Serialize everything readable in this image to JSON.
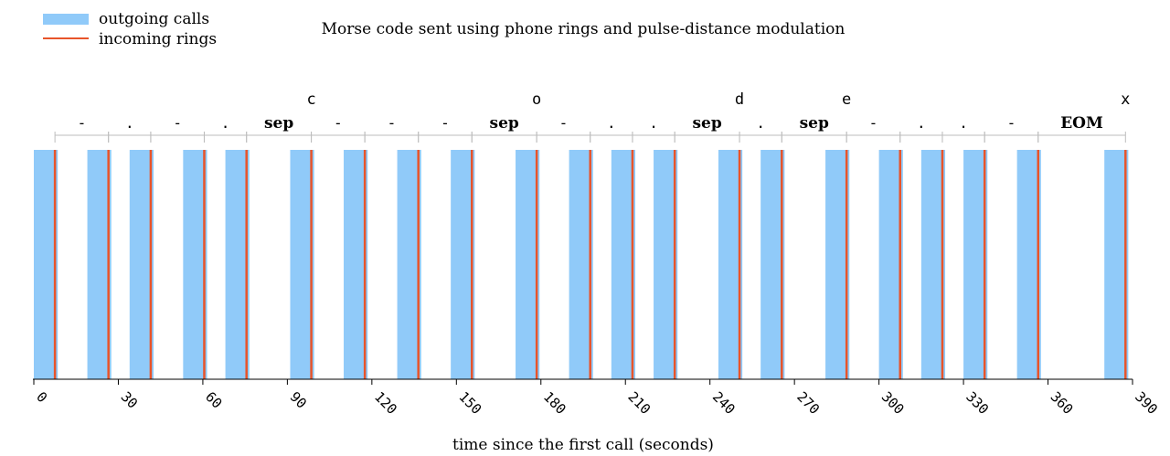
{
  "chart_data": {
    "type": "bar",
    "title": "Morse code sent using phone rings and pulse-distance modulation",
    "xlabel": "time since the first call (seconds)",
    "ylabel": "",
    "xlim": [
      0,
      390
    ],
    "xticks": [
      "0",
      "30",
      "60",
      "90",
      "120",
      "150",
      "180",
      "210",
      "240",
      "270",
      "300",
      "330",
      "360",
      "390"
    ],
    "grid": false,
    "legend_position": "top-left",
    "colors": {
      "outgoing": "#90caf9",
      "incoming": "#e8542a"
    },
    "series": [
      {
        "name": "outgoing calls",
        "kind": "interval",
        "intervals": [
          [
            0,
            8.5
          ],
          [
            19,
            27.5
          ],
          [
            34,
            42.5
          ],
          [
            53,
            61.5
          ],
          [
            68,
            76.5
          ],
          [
            91,
            99.5
          ],
          [
            110,
            118.5
          ],
          [
            129,
            137.5
          ],
          [
            148,
            156.5
          ],
          [
            171,
            179.5
          ],
          [
            190,
            198.5
          ],
          [
            205,
            213.5
          ],
          [
            220,
            228.5
          ],
          [
            243,
            251.5
          ],
          [
            258,
            266.5
          ],
          [
            281,
            289.5
          ],
          [
            300,
            308.5
          ],
          [
            315,
            323.5
          ],
          [
            330,
            338.5
          ],
          [
            349,
            357.5
          ],
          [
            380,
            388.5
          ]
        ]
      },
      {
        "name": "incoming rings",
        "kind": "event",
        "times": [
          7.5,
          26.5,
          41.5,
          60.5,
          75.5,
          98.5,
          117.5,
          136.5,
          155.5,
          178.5,
          197.5,
          212.5,
          227.5,
          250.5,
          265.5,
          288.5,
          307.5,
          322.5,
          337.5,
          356.5,
          387.5
        ]
      }
    ],
    "symbols": [
      {
        "label": "-",
        "start": 7.5,
        "end": 26.5
      },
      {
        "label": ".",
        "start": 26.5,
        "end": 41.5
      },
      {
        "label": "-",
        "start": 41.5,
        "end": 60.5
      },
      {
        "label": ".",
        "start": 60.5,
        "end": 75.5
      },
      {
        "label": "sep",
        "start": 75.5,
        "end": 98.5
      },
      {
        "label": "-",
        "start": 98.5,
        "end": 117.5
      },
      {
        "label": "-",
        "start": 117.5,
        "end": 136.5
      },
      {
        "label": "-",
        "start": 136.5,
        "end": 155.5
      },
      {
        "label": "sep",
        "start": 155.5,
        "end": 178.5
      },
      {
        "label": "-",
        "start": 178.5,
        "end": 197.5
      },
      {
        "label": ".",
        "start": 197.5,
        "end": 212.5
      },
      {
        "label": ".",
        "start": 212.5,
        "end": 227.5
      },
      {
        "label": "sep",
        "start": 227.5,
        "end": 250.5
      },
      {
        "label": ".",
        "start": 250.5,
        "end": 265.5
      },
      {
        "label": "sep",
        "start": 265.5,
        "end": 288.5
      },
      {
        "label": "-",
        "start": 288.5,
        "end": 307.5
      },
      {
        "label": ".",
        "start": 307.5,
        "end": 322.5
      },
      {
        "label": ".",
        "start": 322.5,
        "end": 337.5
      },
      {
        "label": "-",
        "start": 337.5,
        "end": 356.5
      },
      {
        "label": "EOM",
        "start": 356.5,
        "end": 387.5
      }
    ],
    "letters": [
      {
        "label": "c",
        "at": 98.5
      },
      {
        "label": "o",
        "at": 178.5
      },
      {
        "label": "d",
        "at": 250.5
      },
      {
        "label": "e",
        "at": 288.5
      },
      {
        "label": "x",
        "at": 387.5
      }
    ]
  }
}
